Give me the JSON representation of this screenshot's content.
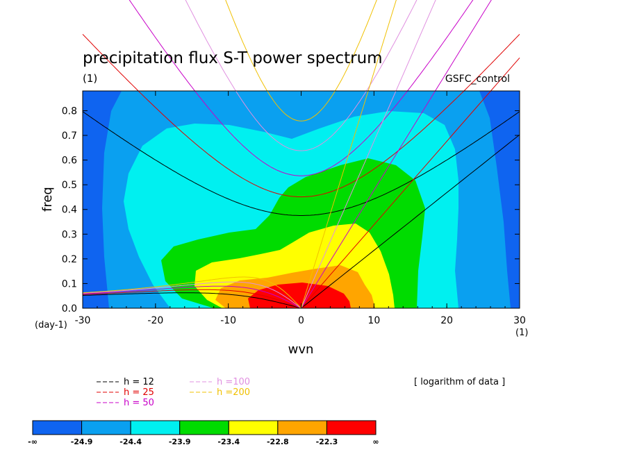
{
  "chart_data": {
    "type": "heatmap",
    "title": "precipitation flux S-T power spectrum",
    "units_left": "(1)",
    "run_label": "GSFC_control",
    "xlabel": "wvn",
    "ylabel": "freq",
    "x_units": "(1)",
    "y_units": "(day-1)",
    "xlim": [
      -30,
      30
    ],
    "ylim": [
      0.0,
      0.88
    ],
    "xticks": [
      "-30",
      "-20",
      "-10",
      "0",
      "10",
      "20",
      "30"
    ],
    "yticks": [
      "0.0",
      "0.1",
      "0.2",
      "0.3",
      "0.4",
      "0.5",
      "0.6",
      "0.7",
      "0.8"
    ],
    "note": "[ logarithm of data ]",
    "colorbar": {
      "labels": [
        "-∞",
        "-24.9",
        "-24.4",
        "-23.9",
        "-23.4",
        "-22.8",
        "-22.3",
        "∞"
      ],
      "colors": [
        "#0f64f0",
        "#0aa0f0",
        "#00f0f0",
        "#00dc00",
        "#ffff00",
        "#ffa500",
        "#ff0000"
      ]
    },
    "dispersion_curves": [
      {
        "h": 12,
        "color": "#000000"
      },
      {
        "h": 25,
        "color": "#e00000"
      },
      {
        "h": 50,
        "color": "#c800c8"
      },
      {
        "h": 100,
        "color": "#e090e0"
      },
      {
        "h": 200,
        "color": "#f0c000"
      }
    ],
    "legend": [
      {
        "label": "h = 12",
        "color": "#000000"
      },
      {
        "label": "h = 25",
        "color": "#e00000"
      },
      {
        "label": "h = 50",
        "color": "#c800c8"
      },
      {
        "label": "h =100",
        "color": "#e090e0"
      },
      {
        "label": "h =200",
        "color": "#f0c000"
      }
    ]
  }
}
